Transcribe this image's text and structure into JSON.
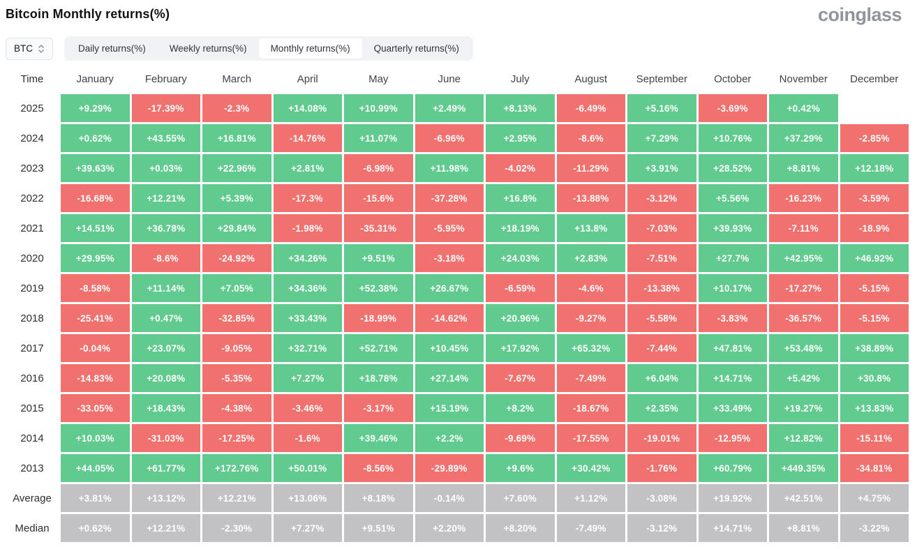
{
  "header": {
    "title": "Bitcoin Monthly returns(%)",
    "logo": "coinglass"
  },
  "controls": {
    "symbol": "BTC",
    "symbol_icon": "updown-chevron-icon",
    "tabs": [
      {
        "label": "Daily returns(%)",
        "active": false
      },
      {
        "label": "Weekly returns(%)",
        "active": false
      },
      {
        "label": "Monthly returns(%)",
        "active": true
      },
      {
        "label": "Quarterly returns(%)",
        "active": false
      }
    ]
  },
  "colors": {
    "positive": "#61ca8e",
    "negative": "#f1716f",
    "neutral": "#c2c2c4"
  },
  "table": {
    "time_label": "Time",
    "months": [
      "January",
      "February",
      "March",
      "April",
      "May",
      "June",
      "July",
      "August",
      "September",
      "October",
      "November",
      "December"
    ],
    "rows": [
      {
        "label": "2025",
        "kind": "year",
        "values": [
          "+9.29%",
          "-17.39%",
          "-2.3%",
          "+14.08%",
          "+10.99%",
          "+2.49%",
          "+8.13%",
          "-6.49%",
          "+5.16%",
          "-3.69%",
          "+0.42%",
          null
        ]
      },
      {
        "label": "2024",
        "kind": "year",
        "values": [
          "+0.62%",
          "+43.55%",
          "+16.81%",
          "-14.76%",
          "+11.07%",
          "-6.96%",
          "+2.95%",
          "-8.6%",
          "+7.29%",
          "+10.76%",
          "+37.29%",
          "-2.85%"
        ]
      },
      {
        "label": "2023",
        "kind": "year",
        "values": [
          "+39.63%",
          "+0.03%",
          "+22.96%",
          "+2.81%",
          "-6.98%",
          "+11.98%",
          "-4.02%",
          "-11.29%",
          "+3.91%",
          "+28.52%",
          "+8.81%",
          "+12.18%"
        ]
      },
      {
        "label": "2022",
        "kind": "year",
        "values": [
          "-16.68%",
          "+12.21%",
          "+5.39%",
          "-17.3%",
          "-15.6%",
          "-37.28%",
          "+16.8%",
          "-13.88%",
          "-3.12%",
          "+5.56%",
          "-16.23%",
          "-3.59%"
        ]
      },
      {
        "label": "2021",
        "kind": "year",
        "values": [
          "+14.51%",
          "+36.78%",
          "+29.84%",
          "-1.98%",
          "-35.31%",
          "-5.95%",
          "+18.19%",
          "+13.8%",
          "-7.03%",
          "+39.93%",
          "-7.11%",
          "-18.9%"
        ]
      },
      {
        "label": "2020",
        "kind": "year",
        "values": [
          "+29.95%",
          "-8.6%",
          "-24.92%",
          "+34.26%",
          "+9.51%",
          "-3.18%",
          "+24.03%",
          "+2.83%",
          "-7.51%",
          "+27.7%",
          "+42.95%",
          "+46.92%"
        ]
      },
      {
        "label": "2019",
        "kind": "year",
        "values": [
          "-8.58%",
          "+11.14%",
          "+7.05%",
          "+34.36%",
          "+52.38%",
          "+26.67%",
          "-6.59%",
          "-4.6%",
          "-13.38%",
          "+10.17%",
          "-17.27%",
          "-5.15%"
        ]
      },
      {
        "label": "2018",
        "kind": "year",
        "values": [
          "-25.41%",
          "+0.47%",
          "-32.85%",
          "+33.43%",
          "-18.99%",
          "-14.62%",
          "+20.96%",
          "-9.27%",
          "-5.58%",
          "-3.83%",
          "-36.57%",
          "-5.15%"
        ]
      },
      {
        "label": "2017",
        "kind": "year",
        "values": [
          "-0.04%",
          "+23.07%",
          "-9.05%",
          "+32.71%",
          "+52.71%",
          "+10.45%",
          "+17.92%",
          "+65.32%",
          "-7.44%",
          "+47.81%",
          "+53.48%",
          "+38.89%"
        ]
      },
      {
        "label": "2016",
        "kind": "year",
        "values": [
          "-14.83%",
          "+20.08%",
          "-5.35%",
          "+7.27%",
          "+18.78%",
          "+27.14%",
          "-7.67%",
          "-7.49%",
          "+6.04%",
          "+14.71%",
          "+5.42%",
          "+30.8%"
        ]
      },
      {
        "label": "2015",
        "kind": "year",
        "values": [
          "-33.05%",
          "+18.43%",
          "-4.38%",
          "-3.46%",
          "-3.17%",
          "+15.19%",
          "+8.2%",
          "-18.67%",
          "+2.35%",
          "+33.49%",
          "+19.27%",
          "+13.83%"
        ]
      },
      {
        "label": "2014",
        "kind": "year",
        "values": [
          "+10.03%",
          "-31.03%",
          "-17.25%",
          "-1.6%",
          "+39.46%",
          "+2.2%",
          "-9.69%",
          "-17.55%",
          "-19.01%",
          "-12.95%",
          "+12.82%",
          "-15.11%"
        ]
      },
      {
        "label": "2013",
        "kind": "year",
        "values": [
          "+44.05%",
          "+61.77%",
          "+172.76%",
          "+50.01%",
          "-8.56%",
          "-29.89%",
          "+9.6%",
          "+30.42%",
          "-1.76%",
          "+60.79%",
          "+449.35%",
          "-34.81%"
        ]
      },
      {
        "label": "Average",
        "kind": "summary",
        "values": [
          "+3.81%",
          "+13.12%",
          "+12.21%",
          "+13.06%",
          "+8.18%",
          "-0.14%",
          "+7.60%",
          "+1.12%",
          "-3.08%",
          "+19.92%",
          "+42.51%",
          "+4.75%"
        ]
      },
      {
        "label": "Median",
        "kind": "summary",
        "values": [
          "+0.62%",
          "+12.21%",
          "-2.30%",
          "+7.27%",
          "+9.51%",
          "+2.20%",
          "+8.20%",
          "-7.49%",
          "-3.12%",
          "+14.71%",
          "+8.81%",
          "-3.22%"
        ]
      }
    ]
  }
}
